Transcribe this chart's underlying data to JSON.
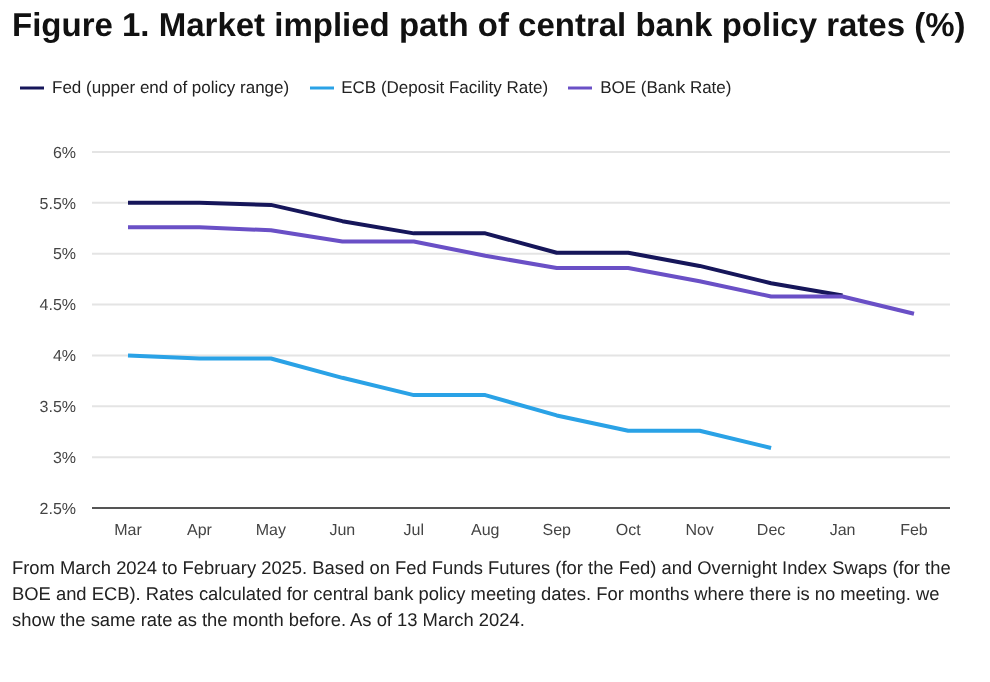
{
  "chart_data": {
    "type": "line",
    "title": "Figure 1. Market implied path of central bank policy rates (%)",
    "categories": [
      "Mar",
      "Apr",
      "May",
      "Jun",
      "Jul",
      "Aug",
      "Sep",
      "Oct",
      "Nov",
      "Dec",
      "Jan",
      "Feb"
    ],
    "series": [
      {
        "name": "Fed (upper end of policy range)",
        "color": "#16165a",
        "values": [
          5.5,
          5.5,
          5.48,
          5.32,
          5.2,
          5.2,
          5.01,
          5.01,
          4.88,
          4.71,
          4.59,
          null
        ]
      },
      {
        "name": "ECB (Deposit Facility Rate)",
        "color": "#2aa2e6",
        "values": [
          4.0,
          3.97,
          3.97,
          3.78,
          3.61,
          3.61,
          3.41,
          3.26,
          3.26,
          3.09,
          null,
          null
        ]
      },
      {
        "name": "BOE (Bank Rate)",
        "color": "#6a50c6",
        "values": [
          5.26,
          5.26,
          5.23,
          5.12,
          5.12,
          4.98,
          4.86,
          4.86,
          4.73,
          4.58,
          4.58,
          4.41
        ]
      }
    ],
    "ylim": [
      2.5,
      6
    ],
    "yticks": [
      {
        "value": 2.5,
        "label": "2.5%"
      },
      {
        "value": 3,
        "label": "3%"
      },
      {
        "value": 3.5,
        "label": "3.5%"
      },
      {
        "value": 4,
        "label": "4%"
      },
      {
        "value": 4.5,
        "label": "4.5%"
      },
      {
        "value": 5,
        "label": "5%"
      },
      {
        "value": 5.5,
        "label": "5.5%"
      },
      {
        "value": 6,
        "label": "6%"
      }
    ],
    "grid": "y",
    "legend": "top left",
    "marker": "none",
    "line_style": "solid",
    "annotations": [
      "From March 2024 to February 2025. Based on Fed Funds Futures (for the Fed) and Overnight Index Swaps (for the BOE and ECB). Rates calculated for central bank policy meeting dates. For months where there is no meeting. we show the same rate as the month before. As of 13 March 2024."
    ]
  }
}
